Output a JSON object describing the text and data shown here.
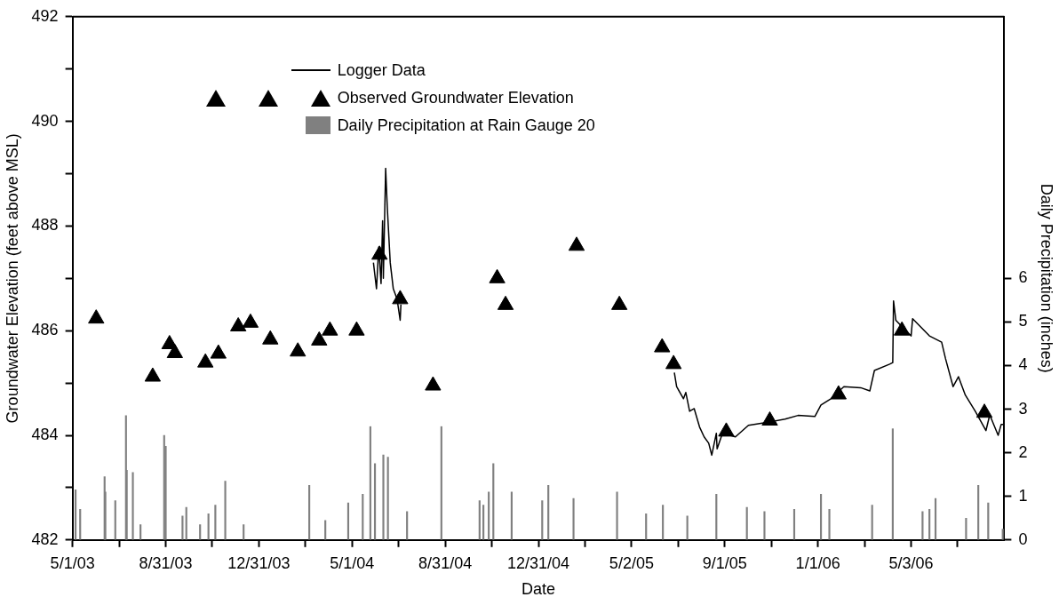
{
  "chart_data": {
    "type": "line",
    "xlabel": "Date",
    "ylabel": "Groundwater Elevation (feet above MSL)",
    "y2label": "Daily Precipitation (inches)",
    "xlim": [
      "2003-05-01",
      "2006-09-02"
    ],
    "xticks": [
      {
        "value": "2003-05-01",
        "label": "5/1/03"
      },
      {
        "value": "2003-07-01",
        "label": null
      },
      {
        "value": "2003-08-31",
        "label": "8/31/03"
      },
      {
        "value": "2003-10-31",
        "label": null
      },
      {
        "value": "2003-12-31",
        "label": "12/31/03"
      },
      {
        "value": "2004-03-01",
        "label": null
      },
      {
        "value": "2004-05-01",
        "label": "5/1/04"
      },
      {
        "value": "2004-07-01",
        "label": null
      },
      {
        "value": "2004-08-31",
        "label": "8/31/04"
      },
      {
        "value": "2004-10-31",
        "label": null
      },
      {
        "value": "2004-12-31",
        "label": "12/31/04"
      },
      {
        "value": "2005-03-02",
        "label": null
      },
      {
        "value": "2005-05-02",
        "label": "5/2/05"
      },
      {
        "value": "2005-07-02",
        "label": null
      },
      {
        "value": "2005-09-01",
        "label": "9/1/05"
      },
      {
        "value": "2005-11-01",
        "label": null
      },
      {
        "value": "2006-01-01",
        "label": "1/1/06"
      },
      {
        "value": "2006-03-03",
        "label": null
      },
      {
        "value": "2006-05-03",
        "label": "5/3/06"
      },
      {
        "value": "2006-07-03",
        "label": null
      }
    ],
    "ylim": [
      482,
      492
    ],
    "yticks": [
      482,
      {
        "value": 483,
        "label": null
      },
      484,
      {
        "value": 485,
        "label": null
      },
      486,
      {
        "value": 487,
        "label": null
      },
      488,
      {
        "value": 489,
        "label": null
      },
      490,
      {
        "value": 491,
        "label": null
      },
      492
    ],
    "y2lim": [
      0,
      12
    ],
    "y2ticks": [
      0,
      1,
      2,
      3,
      4,
      5,
      6
    ],
    "legend": "top left",
    "series": [
      {
        "name": "Logger Data",
        "color": "#000000",
        "x": [
          "2004-05-29",
          "2004-06-02",
          "2004-06-05",
          "2004-06-08",
          "2004-06-10",
          "2004-06-11",
          "2004-06-14",
          "2004-06-16",
          "2004-06-20",
          "2004-06-24",
          "2004-06-29",
          "2004-07-03",
          "2004-07-04",
          "2005-01-01",
          "2005-06-27",
          "2005-06-30",
          "2005-07-09",
          "2005-07-12",
          "2005-07-17",
          "2005-07-23",
          "2005-07-30",
          "2005-08-05",
          "2005-08-11",
          "2005-08-15",
          "2005-08-21",
          "2005-08-22",
          "2005-08-29",
          "2005-09-15",
          "2005-10-02",
          "2005-10-24",
          "2005-11-19",
          "2005-12-06",
          "2005-12-28",
          "2006-01-05",
          "2006-01-18",
          "2006-02-04",
          "2006-02-26",
          "2006-03-10",
          "2006-03-16",
          "2006-04-05",
          "2006-04-09",
          "2006-04-10",
          "2006-04-13",
          "2006-05-03",
          "2006-05-05",
          "2006-05-27",
          "2006-06-12",
          "2006-06-17",
          "2006-06-27",
          "2006-07-04",
          "2006-07-13",
          "2006-07-26",
          "2006-08-09",
          "2006-08-14",
          "2006-08-25",
          "2006-08-29",
          "2006-09-01"
        ],
        "values": [
          487.3,
          486.8,
          487.6,
          486.9,
          488.1,
          487.0,
          489.1,
          488.4,
          487.3,
          486.8,
          486.6,
          486.2,
          486.5,
          null,
          485.2,
          484.93,
          484.7,
          484.82,
          484.46,
          484.51,
          484.16,
          483.97,
          483.85,
          483.62,
          484.04,
          483.74,
          484.04,
          483.97,
          484.19,
          484.24,
          484.31,
          484.38,
          484.36,
          484.58,
          484.7,
          484.93,
          484.91,
          484.85,
          485.24,
          485.36,
          485.39,
          486.57,
          486.2,
          485.9,
          486.23,
          485.9,
          485.78,
          485.47,
          484.93,
          485.12,
          484.77,
          484.46,
          484.09,
          484.39,
          484.0,
          484.21,
          484.21
        ]
      },
      {
        "name": "Observed Groundwater Elevation",
        "type": "scatter",
        "marker": "triangle",
        "color": "#000000",
        "x": [
          "2003-06-01",
          "2003-08-14",
          "2003-09-05",
          "2003-09-12",
          "2003-10-22",
          "2003-11-08",
          "2003-12-04",
          "2003-12-20",
          "2004-01-15",
          "2004-02-20",
          "2004-03-19",
          "2004-04-02",
          "2004-05-07",
          "2004-06-06",
          "2004-07-03",
          "2004-08-15",
          "2004-11-07",
          "2004-11-18",
          "2005-02-19",
          "2005-04-16",
          "2005-06-11",
          "2005-06-26",
          "2005-09-03",
          "2005-10-30",
          "2006-01-28",
          "2006-04-21",
          "2006-08-07"
        ],
        "values": [
          486.23,
          485.12,
          485.74,
          485.57,
          485.39,
          485.56,
          486.08,
          486.15,
          485.83,
          485.6,
          485.81,
          486.0,
          486.0,
          487.45,
          486.6,
          484.95,
          487.0,
          486.49,
          487.62,
          486.49,
          485.68,
          485.36,
          484.07,
          484.28,
          484.78,
          486.0,
          484.43
        ]
      },
      {
        "name": "Daily Precipitation at Rain Gauge 20",
        "type": "bar",
        "axis": "y2",
        "color": "#808080",
        "x": [
          "2003-05-05",
          "2003-05-11",
          "2003-06-12",
          "2003-06-13",
          "2003-06-26",
          "2003-07-10",
          "2003-07-11",
          "2003-07-19",
          "2003-07-29",
          "2003-08-29",
          "2003-08-31",
          "2003-09-22",
          "2003-09-27",
          "2003-10-15",
          "2003-10-26",
          "2003-11-04",
          "2003-11-17",
          "2003-12-11",
          "2004-03-06",
          "2004-03-27",
          "2004-04-26",
          "2004-05-15",
          "2004-05-25",
          "2004-05-31",
          "2004-06-11",
          "2004-06-17",
          "2004-07-12",
          "2004-08-26",
          "2004-10-15",
          "2004-10-20",
          "2004-10-27",
          "2004-11-02",
          "2004-11-26",
          "2005-01-05",
          "2005-01-13",
          "2005-02-15",
          "2005-04-13",
          "2005-05-21",
          "2005-06-12",
          "2005-07-14",
          "2005-08-21",
          "2005-09-30",
          "2005-10-23",
          "2005-12-01",
          "2006-01-05",
          "2006-01-16",
          "2006-03-13",
          "2006-04-09",
          "2006-05-18",
          "2006-05-27",
          "2006-06-04",
          "2006-07-14",
          "2006-07-30",
          "2006-08-12",
          "2006-08-31"
        ],
        "values": [
          1.15,
          0.7,
          1.45,
          1.1,
          0.9,
          2.85,
          1.6,
          1.55,
          0.35,
          2.4,
          2.15,
          0.55,
          0.75,
          0.35,
          0.6,
          0.8,
          1.35,
          0.35,
          1.25,
          0.45,
          0.85,
          1.05,
          2.6,
          1.75,
          1.95,
          1.9,
          0.65,
          2.6,
          0.9,
          0.8,
          1.1,
          1.75,
          1.1,
          0.9,
          1.25,
          0.95,
          1.1,
          0.6,
          0.8,
          0.55,
          1.05,
          0.75,
          0.65,
          0.7,
          1.05,
          0.7,
          0.8,
          2.55,
          0.65,
          0.7,
          0.95,
          0.5,
          1.25,
          0.85,
          0.25
        ]
      }
    ]
  }
}
